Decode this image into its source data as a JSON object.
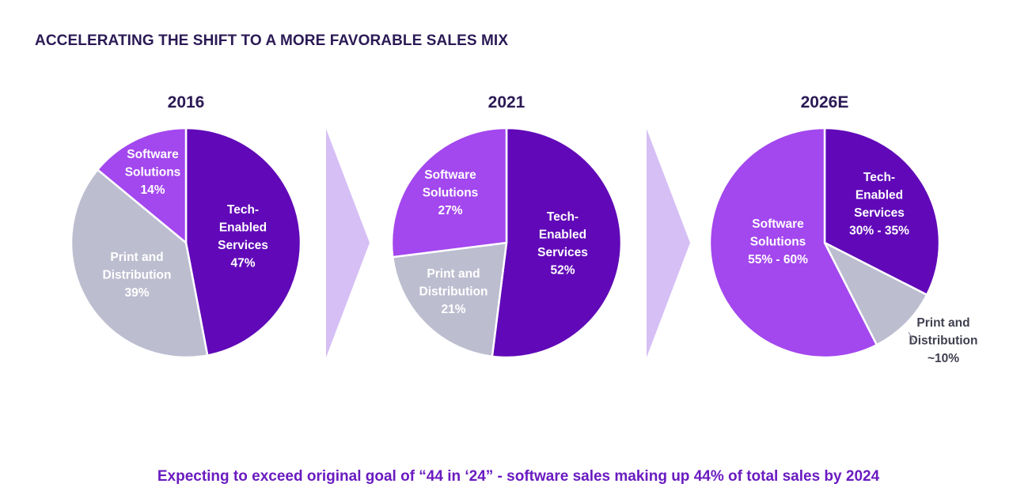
{
  "headline": "ACCELERATING THE SHIFT TO A MORE FAVORABLE SALES MIX",
  "footer": "Expecting to exceed original goal of “44 in ‘24” - software sales making up 44% of total sales by 2024",
  "colors": {
    "tech_enabled": "#6109b8",
    "software": "#a347ee",
    "print": "#bdbdd0",
    "arrow": "#d6bff5",
    "label_light": "#ffffff",
    "label_dark": "#3f3f4f",
    "title": "#2b1a55"
  },
  "chart_data": [
    {
      "type": "pie",
      "title": "2016",
      "slices": [
        {
          "name": "Tech-Enabled Services",
          "value": 47,
          "label_lines": [
            "Tech-",
            "Enabled",
            "Services",
            "47%"
          ],
          "color_key": "tech_enabled"
        },
        {
          "name": "Print and Distribution",
          "value": 39,
          "label_lines": [
            "Print and",
            "Distribution",
            "39%"
          ],
          "color_key": "print"
        },
        {
          "name": "Software Solutions",
          "value": 14,
          "label_lines": [
            "Software",
            "Solutions",
            "14%"
          ],
          "color_key": "software"
        }
      ]
    },
    {
      "type": "pie",
      "title": "2021",
      "slices": [
        {
          "name": "Tech-Enabled Services",
          "value": 52,
          "label_lines": [
            "Tech-",
            "Enabled",
            "Services",
            "52%"
          ],
          "color_key": "tech_enabled"
        },
        {
          "name": "Print and Distribution",
          "value": 21,
          "label_lines": [
            "Print and",
            "Distribution",
            "21%"
          ],
          "color_key": "print"
        },
        {
          "name": "Software Solutions",
          "value": 27,
          "label_lines": [
            "Software",
            "Solutions",
            "27%"
          ],
          "color_key": "software"
        }
      ]
    },
    {
      "type": "pie",
      "title": "2026E",
      "slices": [
        {
          "name": "Tech-Enabled Services",
          "value": 32.5,
          "label_lines": [
            "Tech-",
            "Enabled",
            "Services",
            "30% - 35%"
          ],
          "color_key": "tech_enabled"
        },
        {
          "name": "Print and Distribution",
          "value": 10,
          "label_lines": [
            "Print and",
            "Distribution",
            "~10%"
          ],
          "color_key": "print"
        },
        {
          "name": "Software Solutions",
          "value": 57.5,
          "label_lines": [
            "Software",
            "Solutions",
            "55% - 60%"
          ],
          "color_key": "software"
        }
      ]
    }
  ]
}
